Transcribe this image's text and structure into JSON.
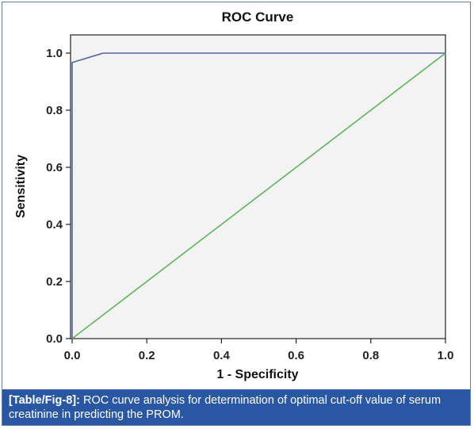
{
  "chart_data": {
    "type": "line",
    "title": "ROC Curve",
    "xlabel": "1 - Specificity",
    "ylabel": "Sensitivity",
    "xlim": [
      0.0,
      1.0
    ],
    "ylim": [
      0.0,
      1.0
    ],
    "x_ticks": [
      "0.0",
      "0.2",
      "0.4",
      "0.6",
      "0.8",
      "1.0"
    ],
    "y_ticks": [
      "0.0",
      "0.2",
      "0.4",
      "0.6",
      "0.8",
      "1.0"
    ],
    "grid": false,
    "series": [
      {
        "color": "#5565a8",
        "points": [
          [
            0.0,
            0.0
          ],
          [
            0.0,
            0.967
          ],
          [
            0.083,
            1.0
          ],
          [
            1.0,
            1.0
          ]
        ]
      },
      {
        "color": "#5bb55a",
        "points": [
          [
            0.0,
            0.0
          ],
          [
            1.0,
            1.0
          ]
        ]
      }
    ]
  },
  "caption": {
    "tag": "[Table/Fig-8]:",
    "text": " ROC curve analysis for determination of optimal cut-off value of serum creatinine in predicting the PROM."
  },
  "colors": {
    "plot_background": "#f3f3f3",
    "caption_background": "#2a57a4"
  }
}
